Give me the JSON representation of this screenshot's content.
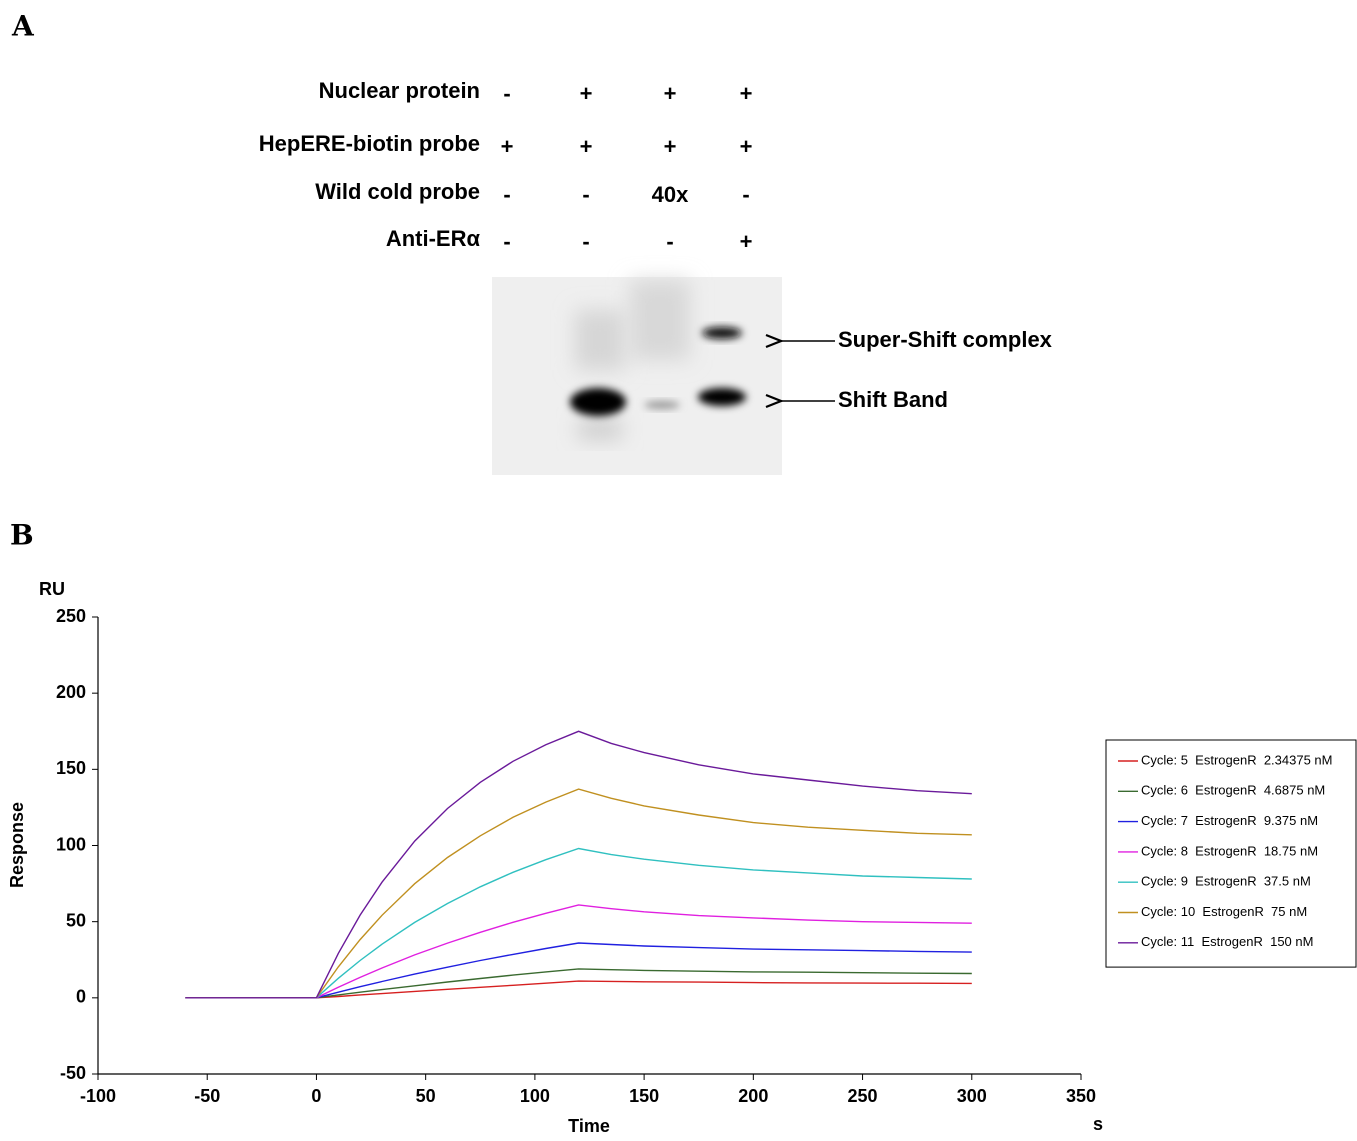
{
  "panel_a": {
    "label": "A",
    "rows": [
      {
        "label": "Nuclear protein",
        "lanes": [
          "-",
          "+",
          "+",
          "+"
        ]
      },
      {
        "label": "HepERE-biotin probe",
        "lanes": [
          "+",
          "+",
          "+",
          "+"
        ]
      },
      {
        "label": "Wild cold probe",
        "lanes": [
          "-",
          "-",
          "40x",
          "-"
        ]
      },
      {
        "label": "Anti-ERα",
        "lanes": [
          "-",
          "-",
          "-",
          "+"
        ]
      }
    ],
    "annotations": [
      "Super-Shift complex",
      "Shift Band"
    ]
  },
  "panel_b_label": "B",
  "chart_data": {
    "type": "line",
    "y_unit": "RU",
    "y_label": "Response",
    "x_label": "Time",
    "x_unit": "s",
    "x": [
      -60,
      -30,
      0,
      10,
      20,
      30,
      45,
      60,
      75,
      90,
      105,
      120,
      135,
      150,
      175,
      200,
      225,
      250,
      275,
      300
    ],
    "series": [
      {
        "name": "Cycle: 5  EstrogenR  2.34375 nM",
        "color": "#d62020",
        "values": [
          0,
          0,
          0,
          0.9,
          1.9,
          2.8,
          4.2,
          5.6,
          6.9,
          8.2,
          9.6,
          11,
          10.8,
          10.5,
          10.3,
          10,
          9.8,
          9.7,
          9.6,
          9.5
        ]
      },
      {
        "name": "Cycle: 6  EstrogenR  4.6875 nM",
        "color": "#3a6a30",
        "values": [
          0,
          0,
          0,
          1.9,
          3.7,
          5.4,
          7.9,
          10.4,
          12.7,
          14.9,
          17,
          19,
          18.5,
          18,
          17.5,
          17,
          16.8,
          16.5,
          16.2,
          16
        ]
      },
      {
        "name": "Cycle: 7  EstrogenR  9.375 nM",
        "color": "#2020e0",
        "values": [
          0,
          0,
          0,
          3.7,
          7.3,
          10.7,
          15.6,
          20.1,
          24.5,
          28.5,
          32.4,
          36,
          35,
          34,
          33,
          32,
          31.5,
          31,
          30.5,
          30
        ]
      },
      {
        "name": "Cycle: 8  EstrogenR  18.75 nM",
        "color": "#e020e0",
        "values": [
          0,
          0,
          0,
          6.9,
          13.4,
          19.6,
          28.2,
          35.9,
          43,
          49.6,
          55.5,
          61,
          58.5,
          56.5,
          54,
          52.5,
          51,
          50,
          49.5,
          49
        ]
      },
      {
        "name": "Cycle: 9  EstrogenR  37.5 nM",
        "color": "#30c0c0",
        "values": [
          0,
          0,
          0,
          12.8,
          24.5,
          35.2,
          49.5,
          61.9,
          72.9,
          82.4,
          90.7,
          98,
          94,
          91,
          87,
          84,
          82,
          80,
          79,
          78
        ]
      },
      {
        "name": "Cycle: 10  EstrogenR  75 nM",
        "color": "#c09020",
        "values": [
          0,
          0,
          0,
          20.3,
          38.2,
          54.2,
          74.9,
          92.1,
          106.4,
          118.5,
          128.5,
          137,
          131,
          126,
          120,
          115,
          112,
          110,
          108,
          107
        ]
      },
      {
        "name": "Cycle: 11  EstrogenR  150 nM",
        "color": "#6a1a9a",
        "values": [
          0,
          0,
          0,
          29.2,
          54.3,
          75.9,
          102.9,
          124.3,
          141.5,
          155.3,
          166.2,
          175,
          167,
          161,
          153,
          147,
          143,
          139,
          136,
          134
        ]
      }
    ],
    "xlim": [
      -100,
      350
    ],
    "xticks": [
      -100,
      -50,
      0,
      50,
      100,
      150,
      200,
      250,
      300,
      350
    ],
    "ylim": [
      -50,
      250
    ],
    "yticks": [
      -50,
      0,
      50,
      100,
      150,
      200,
      250
    ],
    "grid": false,
    "legend": "right"
  }
}
